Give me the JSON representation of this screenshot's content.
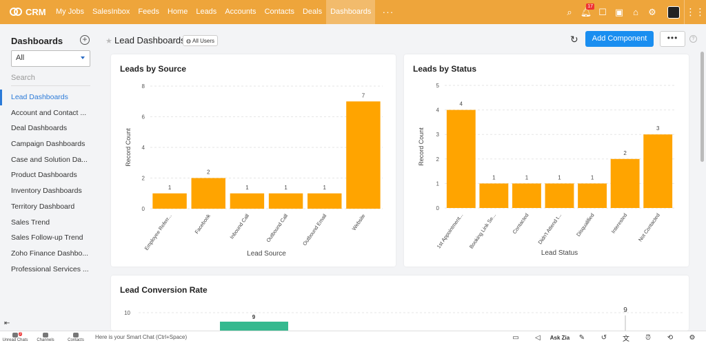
{
  "app": {
    "name": "CRM"
  },
  "nav": {
    "items": [
      "My Jobs",
      "SalesInbox",
      "Feeds",
      "Home",
      "Leads",
      "Accounts",
      "Contacts",
      "Deals",
      "Dashboards"
    ],
    "active_index": 8,
    "more": "···"
  },
  "topbar": {
    "notification_count": "17"
  },
  "sidebar": {
    "title": "Dashboards",
    "filter_value": "All",
    "search_placeholder": "Search",
    "items": [
      "Lead Dashboards",
      "Account and Contact ...",
      "Deal Dashboards",
      "Campaign Dashboards",
      "Case and Solution Da...",
      "Product Dashboards",
      "Inventory Dashboards",
      "Territory Dashboard",
      "Sales Trend",
      "Sales Follow-up Trend",
      "Zoho Finance Dashbo...",
      "Professional Services ..."
    ],
    "active_index": 0
  },
  "header": {
    "title": "Lead Dashboards",
    "users_label": "All Users",
    "add_component": "Add Component",
    "more": "•••",
    "help": "?"
  },
  "colors": {
    "accent": "#eea53b",
    "bar": "#ffa400",
    "conversion_bar": "#35b98f",
    "primary_button": "#1a8ef0"
  },
  "cards": {
    "source": {
      "title": "Leads by Source"
    },
    "status": {
      "title": "Leads by Status"
    },
    "conversion": {
      "title": "Lead Conversion Rate"
    }
  },
  "chart_data": [
    {
      "type": "bar",
      "title": "Leads by Source",
      "categories": [
        "Employee Referr...",
        "Facebook",
        "Inbound Call",
        "Outbound Call",
        "Outbound Email",
        "Website"
      ],
      "values": [
        1,
        2,
        1,
        1,
        1,
        7
      ],
      "xlabel": "Lead Source",
      "ylabel": "Record Count",
      "ylim": [
        0,
        8
      ],
      "yticks": [
        0,
        2,
        4,
        6,
        8
      ],
      "grid": true
    },
    {
      "type": "bar",
      "title": "Leads by Status",
      "categories": [
        "1st Appointment...",
        "Booking Link Se...",
        "Contacted",
        "Didn't Attend t...",
        "Disqualified",
        "Interested",
        "Not Contacted"
      ],
      "values": [
        4,
        1,
        1,
        1,
        1,
        2,
        3
      ],
      "xlabel": "Lead Status",
      "ylabel": "Record Count",
      "ylim": [
        0,
        5
      ],
      "yticks": [
        0,
        1,
        2,
        3,
        4,
        5
      ],
      "grid": true
    },
    {
      "type": "bar",
      "title": "Lead Conversion Rate",
      "yticks_visible": [
        10
      ],
      "labels_visible": [
        "9",
        "9"
      ]
    }
  ],
  "bottombar": {
    "unread_chats": "Unread Chats",
    "unread_count": "3",
    "channels": "Channels",
    "contacts": "Contacts",
    "smart_chat": "Here is your Smart Chat (Ctrl+Space)",
    "ask_zia": "Ask Zia"
  }
}
